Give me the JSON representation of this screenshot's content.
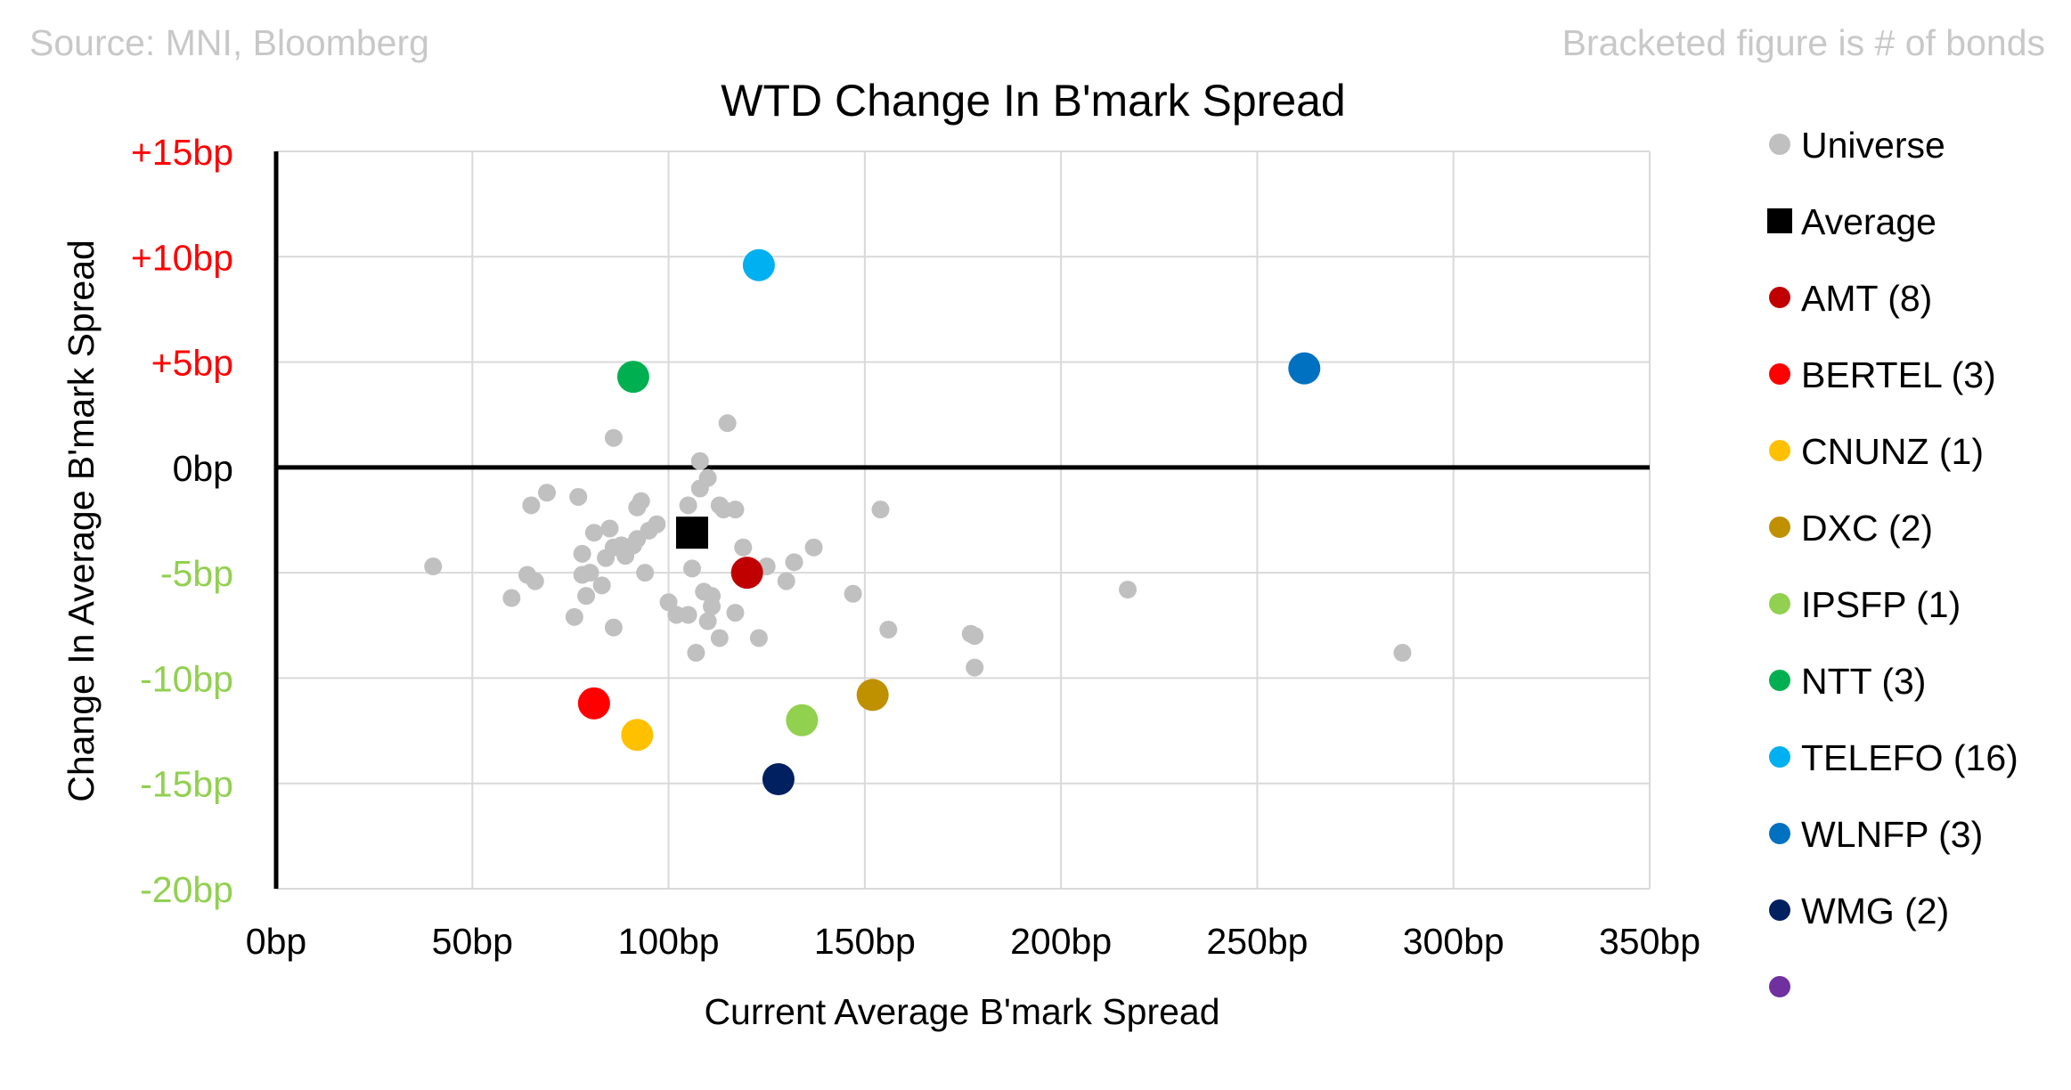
{
  "chart_data": {
    "type": "scatter",
    "title": "WTD Change In B'mark Spread",
    "source_note": "Source: MNI, Bloomberg",
    "bracket_note": "Bracketed figure is # of bonds",
    "xlabel": "Current Average B'mark Spread",
    "ylabel": "Change In Average B'mark  Spread",
    "xlim": [
      0,
      350
    ],
    "ylim": [
      -20,
      15
    ],
    "x_ticks": [
      {
        "value": 0,
        "label": "0bp"
      },
      {
        "value": 50,
        "label": "50bp"
      },
      {
        "value": 100,
        "label": "100bp"
      },
      {
        "value": 150,
        "label": "150bp"
      },
      {
        "value": 200,
        "label": "200bp"
      },
      {
        "value": 250,
        "label": "250bp"
      },
      {
        "value": 300,
        "label": "300bp"
      },
      {
        "value": 350,
        "label": "350bp"
      }
    ],
    "y_ticks": [
      {
        "value": 15,
        "label": "+15bp",
        "color": "#ff0000"
      },
      {
        "value": 10,
        "label": "+10bp",
        "color": "#ff0000"
      },
      {
        "value": 5,
        "label": "+5bp",
        "color": "#ff0000"
      },
      {
        "value": 0,
        "label": "0bp",
        "color": "#000000"
      },
      {
        "value": -5,
        "label": "-5bp",
        "color": "#92d050"
      },
      {
        "value": -10,
        "label": "-10bp",
        "color": "#92d050"
      },
      {
        "value": -15,
        "label": "-15bp",
        "color": "#92d050"
      },
      {
        "value": -20,
        "label": "-20bp",
        "color": "#92d050"
      }
    ],
    "grid": true,
    "legend_position": "right",
    "series": [
      {
        "name": "Universe",
        "color": "#c0c0c0",
        "marker": "circle",
        "size": "small",
        "points": [
          [
            40,
            -4.7
          ],
          [
            60,
            -6.2
          ],
          [
            64,
            -5.1
          ],
          [
            65,
            -1.8
          ],
          [
            66,
            -5.4
          ],
          [
            69,
            -1.2
          ],
          [
            76,
            -7.1
          ],
          [
            77,
            -1.4
          ],
          [
            78,
            -4.1
          ],
          [
            78,
            -5.1
          ],
          [
            79,
            -6.1
          ],
          [
            80,
            -5.0
          ],
          [
            81,
            -3.1
          ],
          [
            83,
            -5.6
          ],
          [
            84,
            -4.3
          ],
          [
            85,
            -2.9
          ],
          [
            86,
            1.4
          ],
          [
            86,
            -3.8
          ],
          [
            86,
            -7.6
          ],
          [
            88,
            -3.7
          ],
          [
            89,
            -4.2
          ],
          [
            91,
            -3.7
          ],
          [
            92,
            -1.9
          ],
          [
            92,
            -3.4
          ],
          [
            93,
            -1.6
          ],
          [
            94,
            -5.0
          ],
          [
            95,
            -3.0
          ],
          [
            97,
            -2.7
          ],
          [
            100,
            -6.4
          ],
          [
            102,
            -7.0
          ],
          [
            105,
            -1.8
          ],
          [
            105,
            -7.0
          ],
          [
            106,
            -4.8
          ],
          [
            107,
            -8.8
          ],
          [
            108,
            -1.0
          ],
          [
            108,
            0.3
          ],
          [
            109,
            -5.9
          ],
          [
            110,
            -7.3
          ],
          [
            110,
            -0.5
          ],
          [
            111,
            -6.1
          ],
          [
            111,
            -6.6
          ],
          [
            113,
            -1.8
          ],
          [
            113,
            -8.1
          ],
          [
            114,
            -2.0
          ],
          [
            115,
            2.1
          ],
          [
            117,
            -2.0
          ],
          [
            117,
            -6.9
          ],
          [
            119,
            -3.8
          ],
          [
            123,
            -8.1
          ],
          [
            125,
            -4.7
          ],
          [
            130,
            -5.4
          ],
          [
            132,
            -4.5
          ],
          [
            137,
            -3.8
          ],
          [
            147,
            -6.0
          ],
          [
            154,
            -2.0
          ],
          [
            156,
            -7.7
          ],
          [
            177,
            -7.9
          ],
          [
            178,
            -8.0
          ],
          [
            178,
            -9.5
          ],
          [
            217,
            -5.8
          ],
          [
            287,
            -8.8
          ]
        ]
      },
      {
        "name": "Average",
        "color": "#000000",
        "marker": "square",
        "size": "large",
        "points": [
          [
            106,
            -3.1
          ]
        ]
      },
      {
        "name": "AMT  (8)",
        "color": "#c00000",
        "marker": "circle",
        "size": "large",
        "points": [
          [
            120,
            -5.0
          ]
        ]
      },
      {
        "name": "BERTEL  (3)",
        "color": "#ff0000",
        "marker": "circle",
        "size": "large",
        "points": [
          [
            81,
            -11.2
          ]
        ]
      },
      {
        "name": "CNUNZ  (1)",
        "color": "#ffc000",
        "marker": "circle",
        "size": "large",
        "points": [
          [
            92,
            -12.7
          ]
        ]
      },
      {
        "name": "DXC  (2)",
        "color": "#bf9000",
        "marker": "circle",
        "size": "large",
        "points": [
          [
            152,
            -10.8
          ]
        ]
      },
      {
        "name": "IPSFP  (1)",
        "color": "#92d050",
        "marker": "circle",
        "size": "large",
        "points": [
          [
            134,
            -12.0
          ]
        ]
      },
      {
        "name": "NTT  (3)",
        "color": "#00b050",
        "marker": "circle",
        "size": "large",
        "points": [
          [
            91,
            4.3
          ]
        ]
      },
      {
        "name": "TELEFO  (16)",
        "color": "#00b0f0",
        "marker": "circle",
        "size": "large",
        "points": [
          [
            123,
            9.6
          ]
        ]
      },
      {
        "name": "WLNFP  (3)",
        "color": "#0070c0",
        "marker": "circle",
        "size": "large",
        "points": [
          [
            262,
            4.7
          ]
        ]
      },
      {
        "name": "WMG  (2)",
        "color": "#002060",
        "marker": "circle",
        "size": "large",
        "points": [
          [
            128,
            -14.8
          ]
        ]
      },
      {
        "name": "",
        "color": "#7030a0",
        "marker": "circle",
        "size": "large",
        "points": []
      }
    ]
  }
}
